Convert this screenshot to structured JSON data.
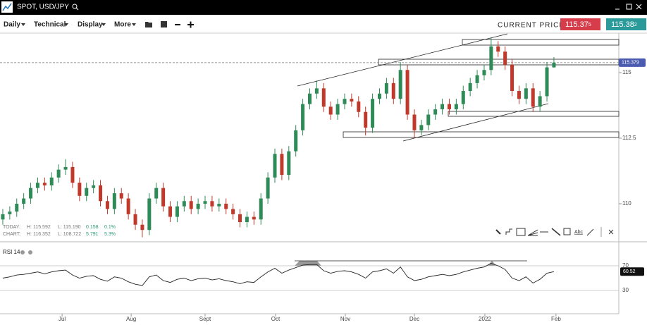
{
  "header": {
    "symbol": "SPOT, USD/JPY"
  },
  "toolbar": {
    "menus": [
      "Daily",
      "Technical",
      "Display",
      "More"
    ],
    "current_price_label": "CURRENT PRICE:",
    "bid": {
      "main": "115.37",
      "pip": "5"
    },
    "ask": {
      "main": "115.38",
      "pip": "2"
    }
  },
  "stats": {
    "today": [
      "TODAY:",
      "H: 115.592",
      "L: 115.190",
      "0.158",
      "0.1%"
    ],
    "chart": [
      "CHART:",
      "H: 116.352",
      "L: 108.722",
      "5.791",
      "5.3%"
    ]
  },
  "drawing_tools": {
    "text_tool": "Abc"
  },
  "chart_data": [
    {
      "type": "candlestick",
      "up_color": "#2e8b57",
      "down_color": "#c0392b",
      "open": [
        109.4,
        109.6,
        109.7,
        110.0,
        110.2,
        110.6,
        110.8,
        110.7,
        111.0,
        111.3,
        111.4,
        110.8,
        110.3,
        110.6,
        110.7,
        110.1,
        109.8,
        110.4,
        110.2,
        109.6,
        109.2,
        109.0,
        110.2,
        110.6,
        109.9,
        109.5,
        109.9,
        110.1,
        109.8,
        110.0,
        110.1,
        109.9,
        110.0,
        109.8,
        109.6,
        109.3,
        109.5,
        109.4,
        110.2,
        111.0,
        111.9,
        111.1,
        112.0,
        112.8,
        113.8,
        114.2,
        114.4,
        113.7,
        113.4,
        113.8,
        114.0,
        113.9,
        113.5,
        112.9,
        114.0,
        114.2,
        114.6,
        114.0,
        115.1,
        113.4,
        112.8,
        113.0,
        113.4,
        113.6,
        113.8,
        113.6,
        113.8,
        114.3,
        114.6,
        114.9,
        115.1,
        116.0,
        115.8,
        115.3,
        114.3,
        114.0,
        114.4,
        113.7,
        114.1,
        115.2
      ],
      "high": [
        109.8,
        109.9,
        110.2,
        110.4,
        110.8,
        111.0,
        111.0,
        111.2,
        111.5,
        111.7,
        111.6,
        111.0,
        110.8,
        110.9,
        110.9,
        110.3,
        110.6,
        110.6,
        110.4,
        109.8,
        109.4,
        110.4,
        110.8,
        110.8,
        110.1,
        110.1,
        110.3,
        110.3,
        110.2,
        110.3,
        110.3,
        110.2,
        110.2,
        110.0,
        109.8,
        109.7,
        109.7,
        110.4,
        111.2,
        112.1,
        112.1,
        112.2,
        113.0,
        114.0,
        114.4,
        114.7,
        114.6,
        113.9,
        114.0,
        114.2,
        114.2,
        114.1,
        113.7,
        114.2,
        114.4,
        114.8,
        114.8,
        115.4,
        115.3,
        113.6,
        113.2,
        113.6,
        113.8,
        114.0,
        114.0,
        114.0,
        114.5,
        114.8,
        115.1,
        115.3,
        116.35,
        116.2,
        116.0,
        115.5,
        114.5,
        114.6,
        114.6,
        114.3,
        115.4,
        115.59
      ],
      "low": [
        109.2,
        109.4,
        109.5,
        109.8,
        110.0,
        110.4,
        110.5,
        110.5,
        110.8,
        111.1,
        110.6,
        110.1,
        110.1,
        110.4,
        109.9,
        109.6,
        109.6,
        110.0,
        109.4,
        109.0,
        108.72,
        108.8,
        110.0,
        109.7,
        109.3,
        109.3,
        109.7,
        109.6,
        109.6,
        109.8,
        109.7,
        109.7,
        109.6,
        109.4,
        109.1,
        109.1,
        109.2,
        109.2,
        110.0,
        110.8,
        110.9,
        110.9,
        111.8,
        112.6,
        113.6,
        114.0,
        113.5,
        113.2,
        113.2,
        113.6,
        113.7,
        113.3,
        112.6,
        112.7,
        113.8,
        114.0,
        113.8,
        113.8,
        113.2,
        112.5,
        112.6,
        112.8,
        113.2,
        113.4,
        113.4,
        113.4,
        113.6,
        114.1,
        114.4,
        114.7,
        114.9,
        115.6,
        115.1,
        114.1,
        113.8,
        113.8,
        113.5,
        113.5,
        113.9,
        115.19
      ],
      "close": [
        109.6,
        109.7,
        110.0,
        110.2,
        110.6,
        110.8,
        110.7,
        111.0,
        111.3,
        111.4,
        110.8,
        110.3,
        110.6,
        110.7,
        110.1,
        109.8,
        110.4,
        110.2,
        109.6,
        109.2,
        109.0,
        110.2,
        110.6,
        109.9,
        109.5,
        109.9,
        110.1,
        109.8,
        110.0,
        110.1,
        109.9,
        110.0,
        109.8,
        109.6,
        109.3,
        109.5,
        109.4,
        110.2,
        111.0,
        111.9,
        111.1,
        112.0,
        112.8,
        113.8,
        114.2,
        114.4,
        113.7,
        113.4,
        113.8,
        114.0,
        113.9,
        113.5,
        112.9,
        114.0,
        114.2,
        114.6,
        114.0,
        115.1,
        113.4,
        112.8,
        113.0,
        113.4,
        113.6,
        113.8,
        113.6,
        113.8,
        114.3,
        114.6,
        114.9,
        115.1,
        116.0,
        115.8,
        115.3,
        114.3,
        114.0,
        114.4,
        113.7,
        114.1,
        115.2,
        115.38
      ],
      "xlim": [
        -0.4,
        88.3
      ],
      "xticks": [
        {
          "value": 8.5,
          "label": "Jul"
        },
        {
          "value": 18.4,
          "label": "Aug"
        },
        {
          "value": 29,
          "label": "Sept"
        },
        {
          "value": 39.1,
          "label": "Oct"
        },
        {
          "value": 49.1,
          "label": "Nov"
        },
        {
          "value": 59,
          "label": "Dec"
        },
        {
          "value": 69.1,
          "label": "2022"
        },
        {
          "value": 79.3,
          "label": "Feb"
        }
      ],
      "ylim": [
        108.575,
        116.505
      ],
      "yticks": [
        110,
        112.5,
        115
      ],
      "last_price": 115.379
    },
    {
      "type": "line",
      "title": "RSI 14",
      "color": "#222",
      "values": [
        50,
        52,
        55,
        56,
        58,
        60,
        57,
        60,
        62,
        63,
        55,
        50,
        53,
        54,
        48,
        45,
        52,
        50,
        44,
        40,
        38,
        52,
        55,
        46,
        43,
        48,
        50,
        46,
        49,
        50,
        47,
        49,
        46,
        44,
        41,
        44,
        43,
        52,
        60,
        66,
        58,
        63,
        67,
        71,
        72,
        72,
        62,
        58,
        61,
        62,
        60,
        56,
        50,
        60,
        62,
        65,
        58,
        68,
        52,
        46,
        48,
        52,
        54,
        56,
        54,
        56,
        60,
        63,
        66,
        68,
        74,
        70,
        64,
        50,
        46,
        52,
        42,
        48,
        58,
        60.52
      ],
      "ylim": [
        -7.7,
        103.1
      ],
      "yticks": [
        30,
        70
      ]
    }
  ]
}
